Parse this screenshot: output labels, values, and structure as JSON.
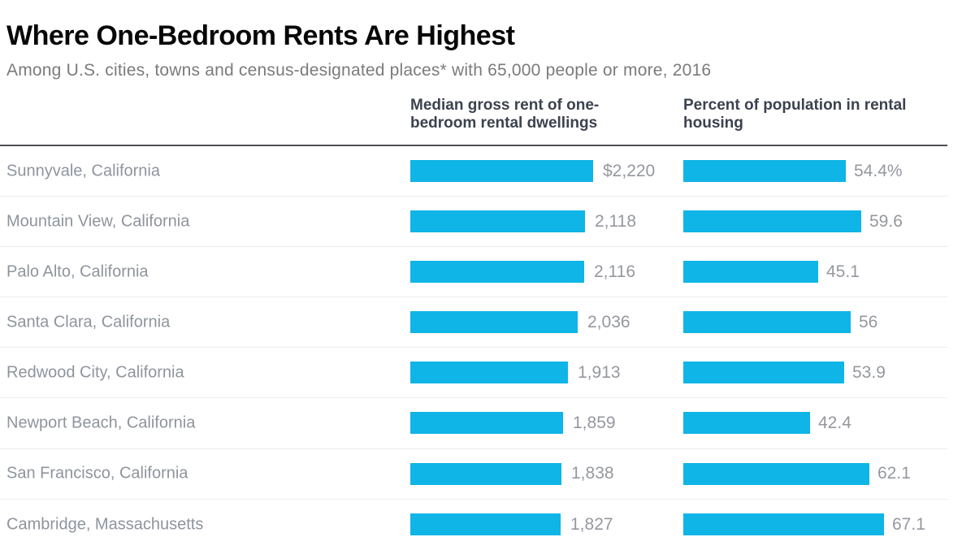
{
  "header": {
    "title": "Where One-Bedroom Rents Are Highest",
    "subtitle": "Among U.S. cities, towns and census-designated places* with 65,000 people or more, 2016"
  },
  "columns": {
    "rent": "Median gross rent of one-bedroom rental dwellings",
    "pct": "Percent of population in rental housing"
  },
  "chart_data": {
    "type": "bar",
    "orientation": "horizontal",
    "title": "Where One-Bedroom Rents Are Highest",
    "subtitle": "Among U.S. cities, towns and census-designated places* with 65,000 people or more, 2016",
    "categories": [
      "Sunnyvale, California",
      "Mountain View, California",
      "Palo Alto, California",
      "Santa Clara, California",
      "Redwood City, California",
      "Newport Beach, California",
      "San Francisco, California",
      "Cambridge, Massachusetts"
    ],
    "series": [
      {
        "name": "Median gross rent of one-bedroom rental dwellings",
        "values": [
          2220,
          2118,
          2116,
          2036,
          1913,
          1859,
          1838,
          1827
        ],
        "labels": [
          "$2,220",
          "2,118",
          "2,116",
          "2,036",
          "1,913",
          "1,859",
          "1,838",
          "1,827"
        ]
      },
      {
        "name": "Percent of population in rental housing",
        "values": [
          54.4,
          59.6,
          45.1,
          56,
          53.9,
          42.4,
          62.1,
          67.1
        ],
        "labels": [
          "54.4%",
          "59.6",
          "45.1",
          "56",
          "53.9",
          "42.4",
          "62.1",
          "67.1"
        ]
      }
    ],
    "xlim": {
      "rent": [
        0,
        2220
      ],
      "percent": [
        0,
        67.1
      ]
    },
    "bar_color": "#0fb5e6",
    "legend": "none",
    "grid": "off"
  }
}
